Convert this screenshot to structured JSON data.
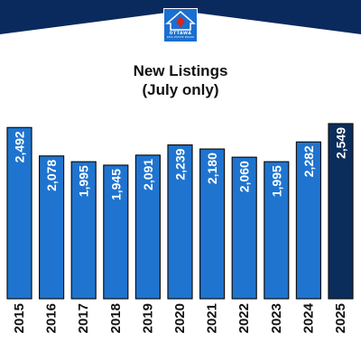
{
  "logo": {
    "name": "OTTAWA",
    "subtitle": "REAL ESTATE BOARD",
    "colors": {
      "background": "#1a6fd0",
      "maple_leaf": "#d8261c"
    }
  },
  "colors": {
    "header_band": "#0a2a5e",
    "bar_primary": "#1f74cf",
    "bar_highlight": "#0b2d5c",
    "bar_outline": "#111111",
    "label_text": "#ffffff",
    "axis_text": "#111111"
  },
  "chart_data": {
    "type": "bar",
    "title": "New Listings",
    "subtitle": "(July only)",
    "categories": [
      "2015",
      "2016",
      "2017",
      "2018",
      "2019",
      "2020",
      "2021",
      "2022",
      "2023",
      "2024",
      "2025"
    ],
    "values": [
      2492,
      2078,
      1995,
      1945,
      2091,
      2239,
      2180,
      2060,
      1995,
      2282,
      2549
    ],
    "value_labels": [
      "2,492",
      "2,078",
      "1,995",
      "1,945",
      "2,091",
      "2,239",
      "2,180",
      "2,060",
      "1,995",
      "2,282",
      "2,549"
    ],
    "highlight_category": "2025",
    "xlabel": "",
    "ylabel": "",
    "ylim": [
      0,
      2549
    ],
    "grid": false,
    "legend": "none"
  }
}
